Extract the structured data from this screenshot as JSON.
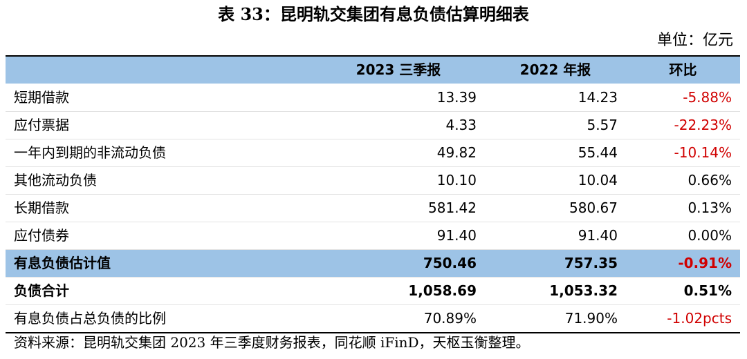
{
  "title": "表 33：昆明轨交集团有息负债估算明细表",
  "unit": "单位：亿元",
  "colors": {
    "header_bg": "#9dc3e6",
    "negative": "#d00000"
  },
  "table": {
    "headers": [
      "",
      "2023 三季报",
      "2022 年报",
      "环比"
    ],
    "rows": [
      {
        "label": "短期借款",
        "v2023": "13.39",
        "v2022": "14.23",
        "change": "-5.88%"
      },
      {
        "label": "应付票据",
        "v2023": "4.33",
        "v2022": "5.57",
        "change": "-22.23%"
      },
      {
        "label": "一年内到期的非流动负债",
        "v2023": "49.82",
        "v2022": "55.44",
        "change": "-10.14%"
      },
      {
        "label": "其他流动负债",
        "v2023": "10.10",
        "v2022": "10.04",
        "change": "0.66%"
      },
      {
        "label": "长期借款",
        "v2023": "581.42",
        "v2022": "580.67",
        "change": "0.13%"
      },
      {
        "label": "应付债券",
        "v2023": "91.40",
        "v2022": "91.40",
        "change": "0.00%"
      },
      {
        "label": "有息负债估计值",
        "v2023": "750.46",
        "v2022": "757.35",
        "change": "-0.91%"
      },
      {
        "label": "负债合计",
        "v2023": "1,058.69",
        "v2022": "1,053.32",
        "change": "0.51%"
      },
      {
        "label": "有息负债占总负债的比例",
        "v2023": "70.89%",
        "v2022": "71.90%",
        "change": "-1.02pcts"
      }
    ]
  },
  "source": "资料来源：昆明轨交集团 2023 年三季度财务报表，同花顺 iFinD，天枢玉衡整理。"
}
